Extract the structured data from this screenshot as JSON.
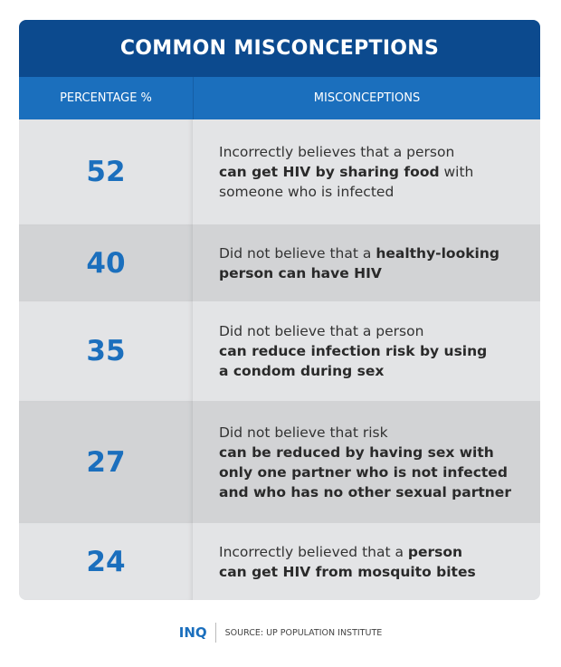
{
  "title": "COMMON MISCONCEPTIONS",
  "headers": [
    "PERCENTAGE %",
    "MISCONCEPTIONS"
  ],
  "colors": {
    "title_bg": "#0c4a8e",
    "header_bg": "#1b6fbd",
    "number": "#1b6fbd",
    "row_light": "#e3e4e6",
    "row_dark": "#d2d3d5"
  },
  "chart_data": {
    "type": "table",
    "title": "COMMON MISCONCEPTIONS",
    "columns": [
      "PERCENTAGE %",
      "MISCONCEPTIONS"
    ],
    "rows": [
      {
        "value": "52",
        "lines": [
          [
            {
              "t": "Incorrectly believes that a person",
              "b": false
            }
          ],
          [
            {
              "t": "can get HIV by sharing food",
              "b": true
            },
            {
              "t": " with",
              "b": false
            }
          ],
          [
            {
              "t": "someone who is infected",
              "b": false
            }
          ]
        ]
      },
      {
        "value": "40",
        "lines": [
          [
            {
              "t": "Did not believe that a ",
              "b": false
            },
            {
              "t": "healthy-looking",
              "b": true
            }
          ],
          [
            {
              "t": "person can have HIV",
              "b": true
            }
          ]
        ]
      },
      {
        "value": "35",
        "lines": [
          [
            {
              "t": "Did not believe that a person",
              "b": false
            }
          ],
          [
            {
              "t": "can reduce infection risk by using",
              "b": true
            }
          ],
          [
            {
              "t": "a condom during sex",
              "b": true
            }
          ]
        ]
      },
      {
        "value": "27",
        "lines": [
          [
            {
              "t": "Did not believe that risk",
              "b": false
            }
          ],
          [
            {
              "t": "can be reduced by having sex with",
              "b": true
            }
          ],
          [
            {
              "t": "only one partner who is not infected",
              "b": true
            }
          ],
          [
            {
              "t": "and who has no other sexual partner",
              "b": true
            }
          ]
        ]
      },
      {
        "value": "24",
        "lines": [
          [
            {
              "t": "Incorrectly believed that a ",
              "b": false
            },
            {
              "t": "person",
              "b": true
            }
          ],
          [
            {
              "t": "can get HIV from mosquito bites",
              "b": true
            }
          ]
        ]
      }
    ]
  },
  "footer": {
    "logo": "INQ",
    "source": "SOURCE: UP POPULATION INSTITUTE"
  }
}
